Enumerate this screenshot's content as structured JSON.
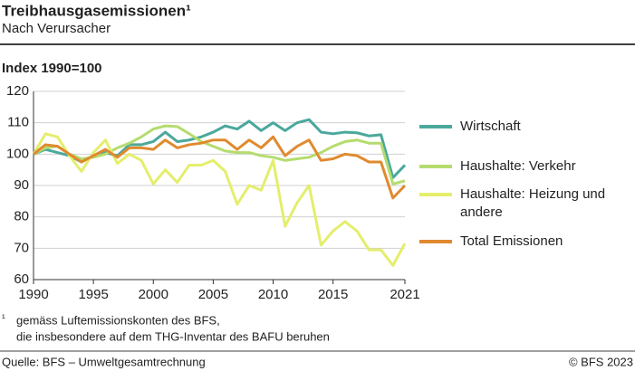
{
  "chart_data": {
    "type": "line",
    "title": "Treibhausgasemissionen¹",
    "subtitle": "Nach Verursacher",
    "y_label": "Index 1990=100",
    "x": [
      1990,
      1991,
      1992,
      1993,
      1994,
      1995,
      1996,
      1997,
      1998,
      1999,
      2000,
      2001,
      2002,
      2003,
      2004,
      2005,
      2006,
      2007,
      2008,
      2009,
      2010,
      2011,
      2012,
      2013,
      2014,
      2015,
      2016,
      2017,
      2018,
      2019,
      2020,
      2021
    ],
    "series": [
      {
        "name": "Wirtschaft",
        "color": "#4ba89c",
        "values": [
          100,
          101.5,
          100.5,
          99.5,
          97.5,
          99.5,
          100.5,
          99.5,
          103,
          103,
          104,
          107,
          104,
          104.5,
          105.5,
          107,
          109,
          108,
          110.5,
          107.5,
          110,
          107.5,
          110,
          111,
          107,
          106.5,
          107,
          106.8,
          105.8,
          106.2,
          92.5,
          96.5
        ]
      },
      {
        "name": "Haushalte: Verkehr",
        "color": "#b5dc6e",
        "values": [
          100,
          102,
          102.5,
          100,
          98.5,
          99,
          100,
          102,
          103.5,
          105.5,
          108,
          109,
          108.8,
          106.5,
          104,
          102.5,
          101,
          100.5,
          100.5,
          99.5,
          99,
          98,
          98.5,
          99,
          100.5,
          102.5,
          104,
          104.5,
          103.5,
          103.5,
          90.5,
          91.5
        ]
      },
      {
        "name": "Haushalte: Heizung und andere",
        "color": "#e4ee6c",
        "values": [
          100,
          106.5,
          105.5,
          99.5,
          94.5,
          100.5,
          104.5,
          97,
          100,
          98,
          90.5,
          95,
          91,
          96.5,
          96.5,
          98,
          94.5,
          84,
          90,
          88.5,
          98,
          77,
          84.5,
          90,
          71,
          75.5,
          78.5,
          75.5,
          69.5,
          69.5,
          64.5,
          71.5
        ]
      },
      {
        "name": "Total Emissionen",
        "color": "#e08a2f",
        "values": [
          100,
          103,
          102.5,
          100,
          97.5,
          99.5,
          101.5,
          99,
          102,
          102,
          101.5,
          104.5,
          102,
          103,
          103.5,
          104.5,
          104.5,
          101.5,
          104.5,
          102,
          105.5,
          99.5,
          102.5,
          104.5,
          98,
          98.5,
          100,
          99.5,
          97.5,
          97.5,
          86,
          90
        ]
      }
    ],
    "xlim": [
      1990,
      2021
    ],
    "xticks": [
      1990,
      1995,
      2000,
      2005,
      2010,
      2015,
      2021
    ],
    "ylim": [
      60,
      120
    ],
    "yticks": [
      60,
      70,
      80,
      90,
      100,
      110,
      120
    ],
    "grid": true,
    "footnote": {
      "marker": "¹",
      "lines": [
        "gemäss Luftemissionskonten des BFS,",
        "die insbesondere auf dem THG-Inventar des BAFU beruhen"
      ]
    },
    "source": "Quelle: BFS – Umweltgesamtrechnung",
    "copyright": "© BFS 2023"
  }
}
